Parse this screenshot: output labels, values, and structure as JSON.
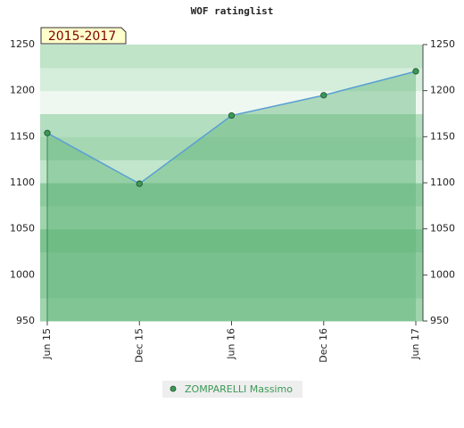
{
  "chart_data": {
    "type": "area",
    "title": "WOF ratinglist",
    "annotation": "2015-2017",
    "categories": [
      "Jun 15",
      "Dec 15",
      "Jun 16",
      "Dec 16",
      "Jun 17"
    ],
    "series": [
      {
        "name": "ZOMPARELLI Massimo",
        "color": "#3a9a55",
        "values": [
          1154,
          1099,
          1173,
          1195,
          1221
        ]
      }
    ],
    "ylim": [
      950,
      1250
    ],
    "yticks": [
      950,
      1000,
      1050,
      1100,
      1150,
      1200,
      1250
    ]
  }
}
